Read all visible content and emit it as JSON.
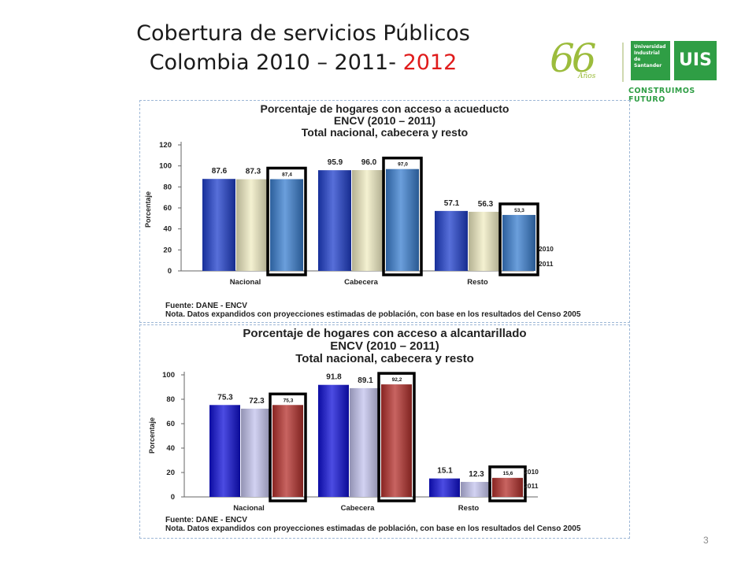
{
  "slide": {
    "title_line1": "Cobertura de servicios Públicos",
    "title_line2_prefix": "Colombia 2010 – 2011- ",
    "title_line2_highlight": "2012",
    "page_number": "3"
  },
  "logo": {
    "anniversary": "66",
    "anniversary_sub": "Años",
    "university": "Universidad Industrial de Santander",
    "initials": "UIS",
    "tagline": "CONSTRUIMOS FUTURO"
  },
  "colors": {
    "title_highlight": "#e01b1b",
    "logo_green": "#2f9e45"
  },
  "chart_data": [
    {
      "type": "bar",
      "title": [
        "Porcentaje de hogares con acceso a acueducto",
        "ENCV (2010 – 2011)",
        "Total nacional, cabecera y resto"
      ],
      "ylabel": "Porcentaje",
      "ylim": [
        0,
        120
      ],
      "yticks": [
        "0",
        "20",
        "40",
        "60",
        "80",
        "100",
        "120"
      ],
      "categories": [
        "Nacional",
        "Cabecera",
        "Resto"
      ],
      "series": [
        {
          "name": "2010",
          "values": [
            87.6,
            95.9,
            57.1
          ],
          "labels": [
            "87.6",
            "95.9",
            "57.1"
          ],
          "color": "#1f3fcc"
        },
        {
          "name": "2011",
          "values": [
            87.3,
            96.0,
            56.3
          ],
          "labels": [
            "87.3",
            "96.0",
            "56.3"
          ],
          "color": "#f0ecc2"
        },
        {
          "name": "",
          "values": [
            87.4,
            97.0,
            53.3
          ],
          "labels": [
            "87,4",
            "97,0",
            "53,3"
          ],
          "color": "#3a7fd0",
          "boxed": true
        }
      ],
      "legend_placement": "right",
      "footnote": [
        "Fuente: DANE - ENCV",
        "Nota. Datos expandidos con proyecciones estimadas de población, con base en los resultados del Censo 2005"
      ]
    },
    {
      "type": "bar",
      "title": [
        "Porcentaje de hogares con acceso a alcantarillado",
        "ENCV (2010 – 2011)",
        "Total nacional, cabecera y resto"
      ],
      "ylabel": "Porcentaje",
      "ylim": [
        0,
        100
      ],
      "yticks": [
        "0",
        "20",
        "40",
        "60",
        "80",
        "100"
      ],
      "categories": [
        "Nacional",
        "Cabecera",
        "Resto"
      ],
      "series": [
        {
          "name": "2010",
          "values": [
            75.3,
            91.8,
            15.1
          ],
          "labels": [
            "75.3",
            "91.8",
            "15.1"
          ],
          "color": "#1010d8"
        },
        {
          "name": "2011",
          "values": [
            72.3,
            89.1,
            12.3
          ],
          "labels": [
            "72.3",
            "89.1",
            "12.3"
          ],
          "color": "#c3c3ee"
        },
        {
          "name": "",
          "values": [
            75.3,
            92.2,
            15.6
          ],
          "labels": [
            "75,3",
            "92,2",
            "15,6"
          ],
          "color": "#b5302c",
          "boxed": true
        }
      ],
      "legend_placement": "right",
      "footnote": [
        "Fuente: DANE - ENCV",
        "Nota. Datos expandidos con proyecciones estimadas de población, con base en los resultados del Censo 2005"
      ]
    }
  ]
}
